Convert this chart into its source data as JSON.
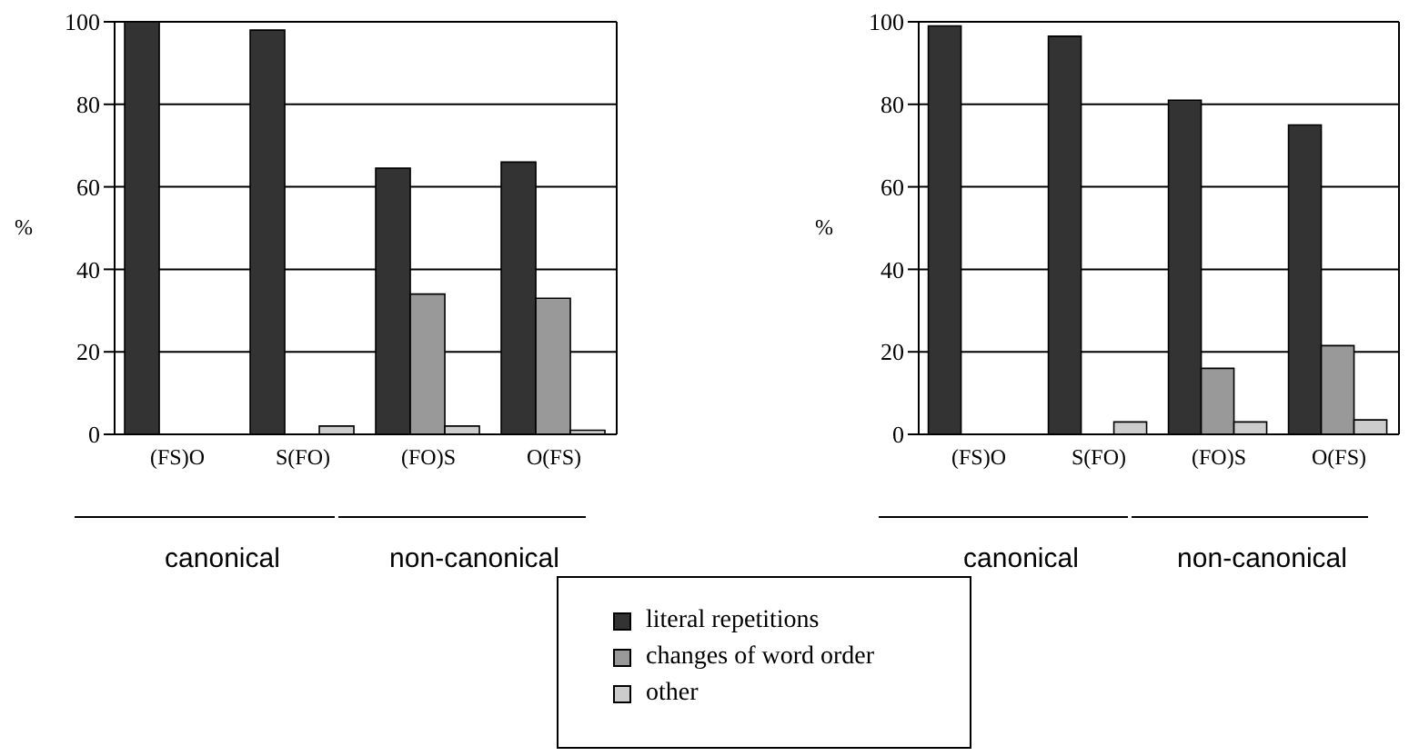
{
  "chart_data": [
    {
      "type": "bar",
      "ylabel": "%",
      "categories": [
        "(FS)O",
        "S(FO)",
        "(FO)S",
        "O(FS)"
      ],
      "series": [
        {
          "name": "literal repetitions",
          "color": "#333333",
          "values": [
            100,
            98,
            64.5,
            66
          ]
        },
        {
          "name": "changes of word order",
          "color": "#999999",
          "values": [
            0,
            0,
            34,
            33
          ]
        },
        {
          "name": "other",
          "color": "#cccccc",
          "values": [
            0,
            2,
            2,
            1
          ]
        }
      ],
      "ylim": [
        0,
        100
      ],
      "yticks": [
        0,
        20,
        40,
        60,
        80,
        100
      ],
      "grid": "y",
      "legend": "bottom",
      "annotations": [
        "canonical",
        "non-canonical"
      ]
    },
    {
      "type": "bar",
      "ylabel": "%",
      "categories": [
        "(FS)O",
        "S(FO)",
        "(FO)S",
        "O(FS)"
      ],
      "series": [
        {
          "color": "#333333",
          "values": [
            99,
            96.5,
            81,
            75
          ]
        },
        {
          "color": "#999999",
          "values": [
            0,
            0,
            16,
            21.5
          ]
        },
        {
          "color": "#cccccc",
          "values": [
            0,
            3,
            3,
            3.5
          ]
        }
      ],
      "ylim": [
        0,
        100
      ],
      "yticks": [
        0,
        20,
        40,
        60,
        80,
        100
      ],
      "grid": "y",
      "annotations": [
        "canonical",
        "non-canonical"
      ]
    }
  ]
}
